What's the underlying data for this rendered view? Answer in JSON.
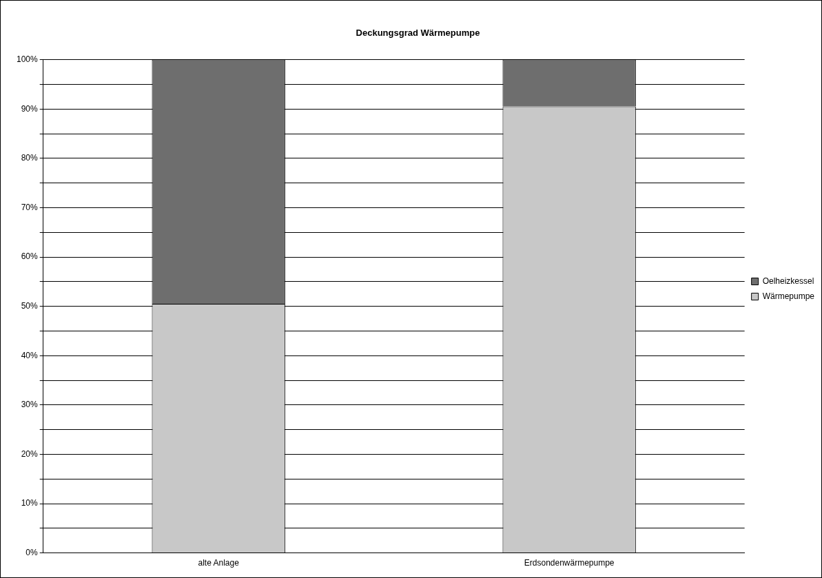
{
  "chart_data": {
    "type": "bar",
    "title": "Deckungsgrad Wärmepumpe",
    "categories": [
      "alte Anlage",
      "Erdsondenwärmepumpe"
    ],
    "series": [
      {
        "name": "Wärmepumpe",
        "color": "#c8c8c8",
        "values": [
          50.5,
          90.5
        ]
      },
      {
        "name": "Oelheizkessel",
        "color": "#6e6e6e",
        "values": [
          49.5,
          9.5
        ]
      }
    ],
    "stacked": true,
    "ylim": [
      0,
      100
    ],
    "yticks": [
      {
        "value": 0,
        "label": "0%"
      },
      {
        "value": 5,
        "label": null
      },
      {
        "value": 10,
        "label": "10%"
      },
      {
        "value": 15,
        "label": null
      },
      {
        "value": 20,
        "label": "20%"
      },
      {
        "value": 25,
        "label": null
      },
      {
        "value": 30,
        "label": "30%"
      },
      {
        "value": 35,
        "label": null
      },
      {
        "value": 40,
        "label": "40%"
      },
      {
        "value": 45,
        "label": null
      },
      {
        "value": 50,
        "label": "50%"
      },
      {
        "value": 55,
        "label": null
      },
      {
        "value": 60,
        "label": "60%"
      },
      {
        "value": 65,
        "label": null
      },
      {
        "value": 70,
        "label": "70%"
      },
      {
        "value": 75,
        "label": null
      },
      {
        "value": 80,
        "label": "80%"
      },
      {
        "value": 85,
        "label": null
      },
      {
        "value": 90,
        "label": "90%"
      },
      {
        "value": 95,
        "label": null
      },
      {
        "value": 100,
        "label": "100%"
      }
    ],
    "grid": "y",
    "legend": "right"
  }
}
